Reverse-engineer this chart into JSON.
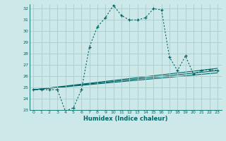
{
  "xlabel": "Humidex (Indice chaleur)",
  "bg_color": "#cce8e8",
  "grid_color": "#aacccc",
  "line_color": "#006666",
  "xlim": [
    -0.5,
    23.5
  ],
  "ylim": [
    23,
    32.4
  ],
  "yticks": [
    23,
    24,
    25,
    26,
    27,
    28,
    29,
    30,
    31,
    32
  ],
  "xticks": [
    0,
    1,
    2,
    3,
    4,
    5,
    6,
    7,
    8,
    9,
    10,
    11,
    12,
    13,
    14,
    15,
    16,
    17,
    18,
    19,
    20,
    21,
    22,
    23
  ],
  "main_x": [
    0,
    1,
    2,
    3,
    4,
    5,
    6,
    7,
    8,
    9,
    10,
    11,
    12,
    13,
    14,
    15,
    16,
    17,
    18,
    19,
    20,
    21,
    22,
    23
  ],
  "main_y": [
    24.8,
    24.8,
    24.8,
    24.8,
    22.9,
    23.2,
    24.8,
    28.6,
    30.4,
    31.2,
    32.3,
    31.4,
    31.0,
    31.0,
    31.2,
    32.0,
    31.9,
    27.7,
    26.5,
    27.8,
    26.2,
    26.5,
    26.6,
    26.5
  ],
  "trend_lines": [
    {
      "x": [
        0,
        23
      ],
      "y": [
        24.8,
        26.3
      ]
    },
    {
      "x": [
        0,
        23
      ],
      "y": [
        24.8,
        26.5
      ]
    },
    {
      "x": [
        0,
        23
      ],
      "y": [
        24.8,
        26.7
      ]
    }
  ]
}
